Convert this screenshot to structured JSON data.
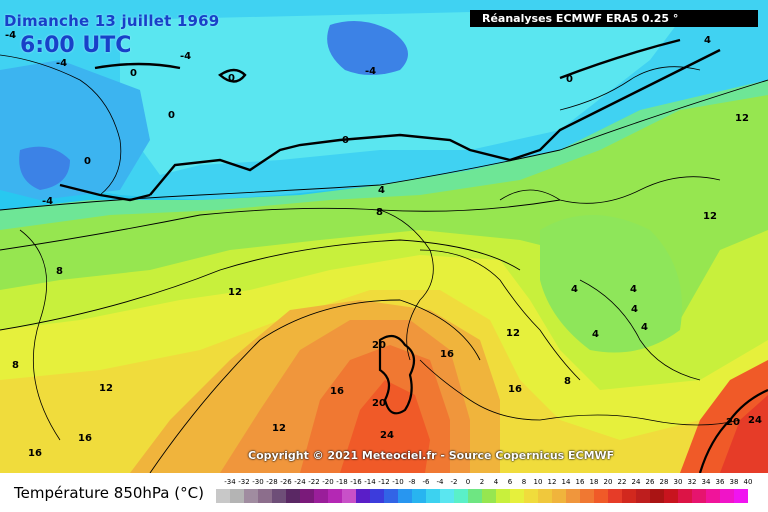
{
  "map": {
    "date": "Dimanche 13 juillet 1969",
    "time": "6:00 UTC",
    "source": "Réanalyses ECMWF ERA5 0.25 °",
    "copyright": "Copyright © 2021 Meteociel.fr - Source Copernicus ECMWF",
    "legend_title": "Température 850hPa (°C)",
    "contour_labels": [
      "-4",
      "-4",
      "-4",
      "-4",
      "-4",
      "0",
      "0",
      "0",
      "0",
      "0",
      "0",
      "4",
      "4",
      "4",
      "4",
      "4",
      "4",
      "4",
      "8",
      "8",
      "8",
      "8",
      "12",
      "12",
      "12",
      "12",
      "12",
      "12",
      "16",
      "16",
      "16",
      "16",
      "16",
      "20",
      "20",
      "20",
      "24",
      "24"
    ]
  },
  "legend": {
    "ticks": [
      "-34",
      "-32",
      "-30",
      "-28",
      "-26",
      "-24",
      "-22",
      "-20",
      "-18",
      "-16",
      "-14",
      "-12",
      "-10",
      "-8",
      "-6",
      "-4",
      "-2",
      "0",
      "2",
      "4",
      "6",
      "8",
      "10",
      "12",
      "14",
      "16",
      "18",
      "20",
      "22",
      "24",
      "26",
      "28",
      "30",
      "32",
      "34",
      "36",
      "38",
      "40"
    ],
    "colors": [
      "#c8c8c8",
      "#b4b4b4",
      "#a08ca0",
      "#8c6e8c",
      "#6e4e78",
      "#5a2864",
      "#7a1a7a",
      "#9a1e9a",
      "#b428b4",
      "#c850c8",
      "#5a1ec8",
      "#3c3cdc",
      "#3264e6",
      "#2896f0",
      "#28b4f0",
      "#3cd2f0",
      "#5ae6f0",
      "#5af0c8",
      "#6ee682",
      "#96e650",
      "#c8f03c",
      "#e6f03c",
      "#f0dc3c",
      "#f0c83c",
      "#f0b43c",
      "#f0963c",
      "#f07832",
      "#f05a28",
      "#e63c28",
      "#d2281e",
      "#be1e1e",
      "#aa1414",
      "#c8141e",
      "#dc1446",
      "#e6146e",
      "#f0149a",
      "#f014c8",
      "#f014f0"
    ]
  }
}
